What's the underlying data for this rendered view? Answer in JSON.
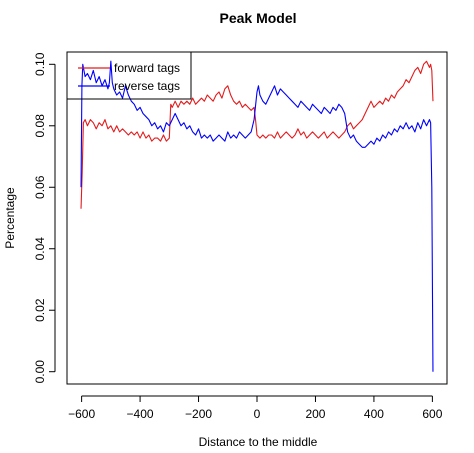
{
  "chart_data": {
    "type": "line",
    "title": "Peak Model",
    "xlabel": "Distance to the middle",
    "ylabel": "Percentage",
    "xlim": [
      -650,
      650
    ],
    "ylim": [
      -0.004,
      0.104
    ],
    "xticks": [
      -600,
      -400,
      -200,
      0,
      200,
      400,
      600
    ],
    "xtick_labels": [
      "−600",
      "−400",
      "−200",
      "0",
      "200",
      "400",
      "600"
    ],
    "yticks": [
      0.0,
      0.02,
      0.04,
      0.06,
      0.08,
      0.1
    ],
    "ytick_labels": [
      "0.00",
      "0.02",
      "0.04",
      "0.06",
      "0.08",
      "0.10"
    ],
    "legend_position": "top-left",
    "grid": false,
    "series": [
      {
        "name": "forward tags",
        "color": "#e41a1c",
        "x": [
          -602,
          -598,
          -594,
          -588,
          -580,
          -570,
          -560,
          -550,
          -540,
          -530,
          -520,
          -510,
          -500,
          -490,
          -480,
          -470,
          -460,
          -450,
          -440,
          -430,
          -420,
          -410,
          -400,
          -390,
          -380,
          -370,
          -360,
          -350,
          -340,
          -330,
          -320,
          -310,
          -300,
          -295,
          -290,
          -280,
          -270,
          -260,
          -250,
          -240,
          -230,
          -220,
          -210,
          -200,
          -190,
          -180,
          -170,
          -160,
          -150,
          -140,
          -130,
          -120,
          -110,
          -100,
          -90,
          -80,
          -70,
          -60,
          -50,
          -40,
          -30,
          -20,
          -10,
          -5,
          0,
          10,
          20,
          30,
          40,
          50,
          60,
          70,
          80,
          90,
          100,
          110,
          120,
          130,
          140,
          150,
          160,
          170,
          180,
          190,
          200,
          210,
          220,
          230,
          240,
          250,
          260,
          270,
          280,
          290,
          300,
          310,
          320,
          330,
          340,
          350,
          360,
          370,
          380,
          390,
          400,
          410,
          420,
          430,
          440,
          450,
          460,
          470,
          480,
          490,
          500,
          510,
          520,
          530,
          540,
          550,
          560,
          570,
          580,
          590,
          594,
          598,
          602
        ],
        "y": [
          0.053,
          0.065,
          0.081,
          0.082,
          0.08,
          0.082,
          0.081,
          0.079,
          0.081,
          0.08,
          0.082,
          0.079,
          0.08,
          0.078,
          0.08,
          0.078,
          0.079,
          0.078,
          0.077,
          0.078,
          0.077,
          0.078,
          0.076,
          0.078,
          0.076,
          0.077,
          0.075,
          0.076,
          0.076,
          0.075,
          0.077,
          0.075,
          0.076,
          0.087,
          0.086,
          0.088,
          0.086,
          0.088,
          0.087,
          0.088,
          0.087,
          0.089,
          0.087,
          0.088,
          0.089,
          0.088,
          0.09,
          0.089,
          0.088,
          0.09,
          0.091,
          0.089,
          0.092,
          0.093,
          0.09,
          0.088,
          0.087,
          0.088,
          0.086,
          0.087,
          0.086,
          0.085,
          0.086,
          0.082,
          0.077,
          0.076,
          0.077,
          0.076,
          0.077,
          0.077,
          0.076,
          0.078,
          0.076,
          0.077,
          0.078,
          0.077,
          0.076,
          0.077,
          0.079,
          0.077,
          0.078,
          0.076,
          0.077,
          0.078,
          0.077,
          0.076,
          0.077,
          0.078,
          0.076,
          0.077,
          0.078,
          0.077,
          0.076,
          0.077,
          0.078,
          0.08,
          0.081,
          0.079,
          0.08,
          0.081,
          0.082,
          0.084,
          0.086,
          0.088,
          0.086,
          0.087,
          0.088,
          0.087,
          0.089,
          0.088,
          0.09,
          0.089,
          0.091,
          0.092,
          0.093,
          0.095,
          0.094,
          0.096,
          0.098,
          0.099,
          0.097,
          0.1,
          0.101,
          0.099,
          0.1,
          0.098,
          0.088
        ]
      },
      {
        "name": "reverse tags",
        "color": "#0000ff",
        "x": [
          -602,
          -599,
          -596,
          -592,
          -588,
          -580,
          -570,
          -560,
          -550,
          -540,
          -530,
          -520,
          -510,
          -505,
          -500,
          -495,
          -490,
          -480,
          -470,
          -460,
          -450,
          -440,
          -430,
          -420,
          -410,
          -400,
          -390,
          -380,
          -370,
          -360,
          -350,
          -340,
          -330,
          -320,
          -310,
          -300,
          -290,
          -280,
          -270,
          -260,
          -250,
          -240,
          -230,
          -220,
          -210,
          -200,
          -190,
          -180,
          -170,
          -160,
          -150,
          -140,
          -130,
          -120,
          -110,
          -100,
          -90,
          -80,
          -70,
          -60,
          -50,
          -40,
          -30,
          -20,
          -10,
          0,
          5,
          10,
          20,
          30,
          40,
          50,
          60,
          70,
          80,
          90,
          100,
          110,
          120,
          130,
          140,
          150,
          160,
          170,
          180,
          190,
          200,
          210,
          220,
          230,
          240,
          250,
          260,
          270,
          280,
          290,
          295,
          300,
          310,
          320,
          330,
          340,
          350,
          360,
          370,
          380,
          390,
          400,
          410,
          420,
          430,
          440,
          450,
          460,
          470,
          480,
          490,
          500,
          510,
          520,
          530,
          540,
          550,
          560,
          570,
          580,
          590,
          594,
          598,
          602
        ],
        "y": [
          0.06,
          0.093,
          0.1,
          0.098,
          0.096,
          0.097,
          0.095,
          0.098,
          0.094,
          0.096,
          0.093,
          0.095,
          0.092,
          0.094,
          0.101,
          0.094,
          0.092,
          0.09,
          0.091,
          0.089,
          0.093,
          0.09,
          0.088,
          0.087,
          0.085,
          0.086,
          0.084,
          0.083,
          0.082,
          0.08,
          0.081,
          0.079,
          0.08,
          0.078,
          0.081,
          0.08,
          0.082,
          0.084,
          0.082,
          0.08,
          0.081,
          0.079,
          0.08,
          0.078,
          0.077,
          0.079,
          0.076,
          0.077,
          0.076,
          0.077,
          0.075,
          0.076,
          0.077,
          0.076,
          0.075,
          0.078,
          0.076,
          0.077,
          0.076,
          0.078,
          0.077,
          0.076,
          0.077,
          0.078,
          0.082,
          0.091,
          0.093,
          0.09,
          0.088,
          0.087,
          0.089,
          0.091,
          0.093,
          0.09,
          0.092,
          0.091,
          0.09,
          0.089,
          0.088,
          0.087,
          0.086,
          0.088,
          0.087,
          0.086,
          0.085,
          0.087,
          0.086,
          0.085,
          0.084,
          0.086,
          0.085,
          0.084,
          0.086,
          0.085,
          0.087,
          0.086,
          0.085,
          0.084,
          0.078,
          0.076,
          0.077,
          0.075,
          0.074,
          0.073,
          0.073,
          0.074,
          0.075,
          0.074,
          0.076,
          0.075,
          0.077,
          0.076,
          0.078,
          0.077,
          0.079,
          0.078,
          0.08,
          0.079,
          0.081,
          0.079,
          0.08,
          0.078,
          0.081,
          0.079,
          0.082,
          0.08,
          0.082,
          0.081,
          0.06,
          0.0
        ]
      }
    ]
  }
}
